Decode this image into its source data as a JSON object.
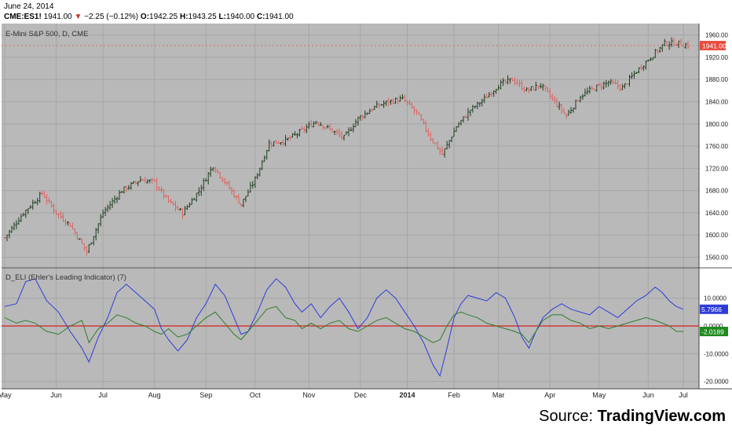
{
  "header": {
    "date": "June 24, 2014",
    "symbol": "CME:ES1!",
    "last": "1941.00",
    "change": "−2.25 (−0.12%)",
    "open_label": "O:",
    "open": "1942.25",
    "high_label": "H:",
    "high": "1943.25",
    "low_label": "L:",
    "low": "1940.00",
    "close_label": "C:",
    "close": "1941.00"
  },
  "colors": {
    "background": "#b9b9b9",
    "up_bar": "#1e3d1e",
    "down_bar": "#e06060",
    "ehlers_line": "#2f3bd9",
    "leading_line": "#2e7d2e",
    "zero_line": "#d62020",
    "price_tag": "#e74c3c",
    "blue_tag": "#2f3bd9",
    "green_tag": "#1f8a1f"
  },
  "footer": {
    "source_prefix": "Source: ",
    "source_name": "TradingView.com"
  },
  "chart_data": [
    {
      "type": "candlestick",
      "title": "E-Mini S&P 500, D, CME",
      "x_ticks": [
        "May",
        "Jun",
        "Jul",
        "Aug",
        "Sep",
        "Oct",
        "Nov",
        "Dec",
        "2014",
        "Feb",
        "Mar",
        "Apr",
        "May",
        "Jun",
        "Jul"
      ],
      "y_ticks": [
        1560,
        1600,
        1640,
        1680,
        1720,
        1760,
        1800,
        1840,
        1880,
        1920,
        1960
      ],
      "ylim": [
        1548,
        1975
      ],
      "last_price_label": "1941.00",
      "anchors": [
        [
          0,
          1595
        ],
        [
          8,
          1640
        ],
        [
          16,
          1675
        ],
        [
          22,
          1640
        ],
        [
          28,
          1618
        ],
        [
          35,
          1570
        ],
        [
          42,
          1640
        ],
        [
          50,
          1680
        ],
        [
          58,
          1700
        ],
        [
          64,
          1695
        ],
        [
          70,
          1660
        ],
        [
          76,
          1640
        ],
        [
          83,
          1680
        ],
        [
          89,
          1725
        ],
        [
          95,
          1690
        ],
        [
          101,
          1655
        ],
        [
          107,
          1700
        ],
        [
          113,
          1765
        ],
        [
          120,
          1770
        ],
        [
          126,
          1785
        ],
        [
          133,
          1805
        ],
        [
          139,
          1790
        ],
        [
          145,
          1775
        ],
        [
          151,
          1810
        ],
        [
          158,
          1830
        ],
        [
          164,
          1840
        ],
        [
          170,
          1845
        ],
        [
          176,
          1820
        ],
        [
          182,
          1775
        ],
        [
          187,
          1745
        ],
        [
          193,
          1795
        ],
        [
          199,
          1825
        ],
        [
          205,
          1845
        ],
        [
          211,
          1870
        ],
        [
          217,
          1880
        ],
        [
          223,
          1860
        ],
        [
          229,
          1870
        ],
        [
          234,
          1845
        ],
        [
          240,
          1815
        ],
        [
          246,
          1850
        ],
        [
          252,
          1865
        ],
        [
          258,
          1875
        ],
        [
          264,
          1865
        ],
        [
          270,
          1895
        ],
        [
          276,
          1920
        ],
        [
          282,
          1945
        ],
        [
          288,
          1945
        ],
        [
          292,
          1941
        ]
      ]
    },
    {
      "type": "line",
      "title": "D_ELI (Ehler's Leading Indicator) (7)",
      "y_ticks": [
        10,
        0,
        -10,
        -20
      ],
      "y_tick_labels": [
        "10.0000",
        "0.0000",
        "-10.0000",
        "-20.0000"
      ],
      "ylim": [
        -21.5,
        19.5
      ],
      "series": [
        {
          "value_label": "5.7966",
          "points": [
            [
              0,
              7
            ],
            [
              5,
              8
            ],
            [
              9,
              16
            ],
            [
              13,
              17
            ],
            [
              18,
              9
            ],
            [
              23,
              5
            ],
            [
              28,
              -2
            ],
            [
              33,
              -8
            ],
            [
              36,
              -13
            ],
            [
              40,
              -4
            ],
            [
              44,
              3
            ],
            [
              48,
              12
            ],
            [
              52,
              15
            ],
            [
              56,
              12
            ],
            [
              60,
              9
            ],
            [
              64,
              6
            ],
            [
              67,
              -1
            ],
            [
              70,
              -5
            ],
            [
              74,
              -9
            ],
            [
              78,
              -5
            ],
            [
              82,
              3
            ],
            [
              86,
              8
            ],
            [
              90,
              15
            ],
            [
              94,
              11
            ],
            [
              98,
              3
            ],
            [
              101,
              -3
            ],
            [
              104,
              -2
            ],
            [
              108,
              5
            ],
            [
              112,
              13
            ],
            [
              116,
              17
            ],
            [
              120,
              14
            ],
            [
              124,
              8
            ],
            [
              127,
              5
            ],
            [
              131,
              8
            ],
            [
              135,
              3
            ],
            [
              139,
              7
            ],
            [
              143,
              10
            ],
            [
              147,
              5
            ],
            [
              151,
              -1
            ],
            [
              155,
              3
            ],
            [
              159,
              10
            ],
            [
              163,
              13
            ],
            [
              167,
              10
            ],
            [
              171,
              5
            ],
            [
              175,
              0
            ],
            [
              179,
              -6
            ],
            [
              183,
              -14
            ],
            [
              186,
              -18
            ],
            [
              189,
              -8
            ],
            [
              192,
              3
            ],
            [
              195,
              8
            ],
            [
              198,
              11
            ],
            [
              202,
              10
            ],
            [
              206,
              9
            ],
            [
              210,
              12
            ],
            [
              214,
              10
            ],
            [
              218,
              3
            ],
            [
              221,
              -4
            ],
            [
              224,
              -8
            ],
            [
              227,
              -2
            ],
            [
              230,
              3
            ],
            [
              234,
              6
            ],
            [
              238,
              8
            ],
            [
              242,
              6
            ],
            [
              246,
              5
            ],
            [
              250,
              4
            ],
            [
              254,
              7
            ],
            [
              258,
              5
            ],
            [
              262,
              3
            ],
            [
              266,
              6
            ],
            [
              270,
              9
            ],
            [
              274,
              11
            ],
            [
              278,
              14
            ],
            [
              281,
              12
            ],
            [
              284,
              9
            ],
            [
              287,
              7
            ],
            [
              290,
              6
            ]
          ]
        },
        {
          "value_label": "-2.0189",
          "points": [
            [
              0,
              3
            ],
            [
              5,
              1
            ],
            [
              9,
              2
            ],
            [
              13,
              1
            ],
            [
              18,
              -2
            ],
            [
              23,
              -3
            ],
            [
              28,
              0
            ],
            [
              33,
              2
            ],
            [
              36,
              -6
            ],
            [
              40,
              -1
            ],
            [
              44,
              1
            ],
            [
              48,
              4
            ],
            [
              52,
              3
            ],
            [
              56,
              1
            ],
            [
              60,
              0
            ],
            [
              64,
              -2
            ],
            [
              67,
              -3
            ],
            [
              70,
              -1
            ],
            [
              74,
              -4
            ],
            [
              78,
              -3
            ],
            [
              82,
              0
            ],
            [
              86,
              3
            ],
            [
              90,
              5
            ],
            [
              94,
              1
            ],
            [
              98,
              -3
            ],
            [
              101,
              -5
            ],
            [
              104,
              -2
            ],
            [
              108,
              2
            ],
            [
              112,
              6
            ],
            [
              116,
              7
            ],
            [
              120,
              3
            ],
            [
              124,
              2
            ],
            [
              127,
              -1
            ],
            [
              131,
              1
            ],
            [
              135,
              -1
            ],
            [
              139,
              1
            ],
            [
              143,
              2
            ],
            [
              147,
              -1
            ],
            [
              151,
              -2
            ],
            [
              155,
              0
            ],
            [
              159,
              2
            ],
            [
              163,
              3
            ],
            [
              167,
              1
            ],
            [
              171,
              -1
            ],
            [
              175,
              -2
            ],
            [
              179,
              -4
            ],
            [
              183,
              -6
            ],
            [
              186,
              -5
            ],
            [
              189,
              0
            ],
            [
              192,
              4
            ],
            [
              195,
              5
            ],
            [
              198,
              4
            ],
            [
              202,
              3
            ],
            [
              206,
              1
            ],
            [
              210,
              0
            ],
            [
              214,
              -1
            ],
            [
              218,
              -2
            ],
            [
              221,
              -3
            ],
            [
              224,
              -6
            ],
            [
              227,
              -2
            ],
            [
              230,
              2
            ],
            [
              234,
              4
            ],
            [
              238,
              4
            ],
            [
              242,
              2
            ],
            [
              246,
              1
            ],
            [
              250,
              -1
            ],
            [
              254,
              0
            ],
            [
              258,
              -1
            ],
            [
              262,
              0
            ],
            [
              266,
              1
            ],
            [
              270,
              2
            ],
            [
              274,
              3
            ],
            [
              278,
              2
            ],
            [
              281,
              1
            ],
            [
              284,
              0
            ],
            [
              287,
              -2
            ],
            [
              290,
              -2
            ]
          ]
        }
      ]
    }
  ]
}
